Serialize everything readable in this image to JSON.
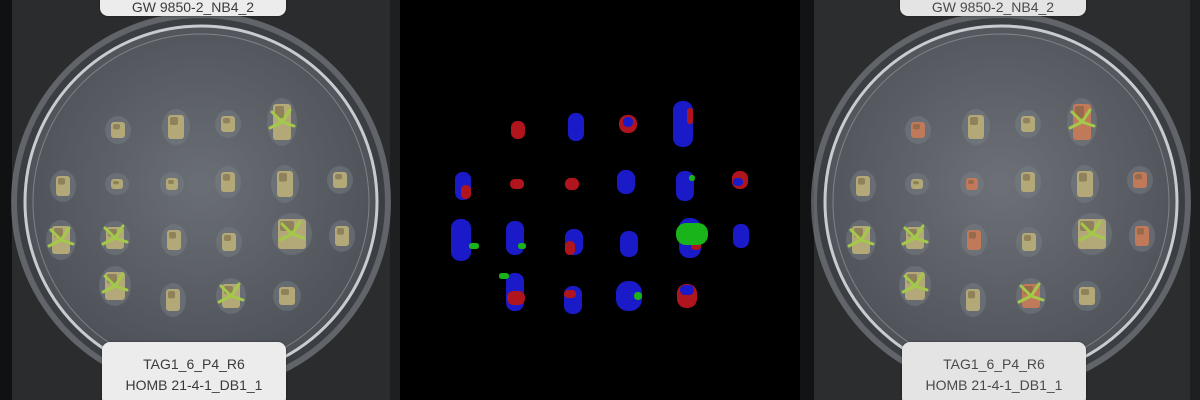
{
  "panels": [
    {
      "name": "original-photo",
      "label_top": "GW 9850-2_NB4_2",
      "label_bottom_line1": "TAG1_6_P4_R6",
      "label_bottom_line2": "HOMB 21-4-1_DB1_1"
    },
    {
      "name": "segmentation-mask",
      "legend_colors": {
        "background": "#000000",
        "red": "#b0141c",
        "blue": "#1a1ac8",
        "green": "#19b419"
      }
    },
    {
      "name": "overlay-photo",
      "label_top": "GW 9850-2_NB4_2",
      "label_bottom_line1": "TAG1_6_P4_R6",
      "label_bottom_line2": "HOMB 21-4-1_DB1_1"
    }
  ],
  "colors": {
    "tray": "#2a2b2d",
    "dish_edge": "#c9cdd2",
    "agar": "#5b6066",
    "tissue": "#b3a978",
    "shoot": "#a4c94a",
    "callus": "#c07a5a"
  }
}
